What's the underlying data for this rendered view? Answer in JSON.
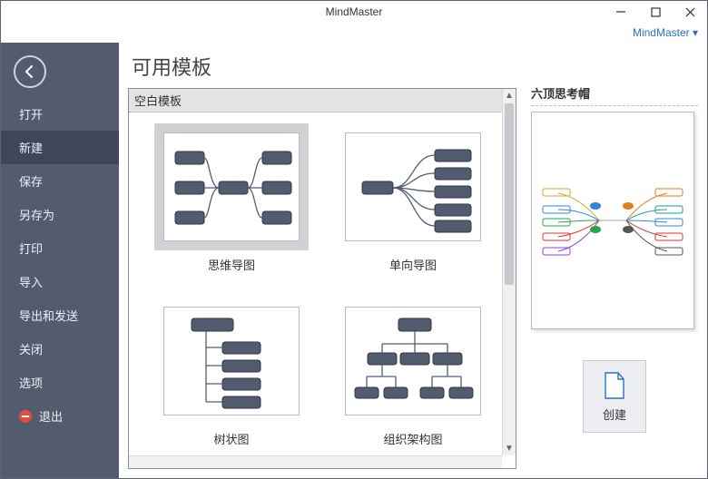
{
  "window": {
    "title": "MindMaster",
    "header_link": "MindMaster ▾"
  },
  "colors": {
    "sidebar_bg": "#535c6f",
    "sidebar_active": "#3e475a",
    "node_fill": "#535c6f",
    "node_stroke": "#2f3645",
    "accent_blue": "#2a6fc9",
    "exit_red": "#e74c3c",
    "selection_bg": "#cfd1d5",
    "panel_border": "#8c8f97"
  },
  "sidebar": {
    "items": [
      {
        "label": "打开",
        "active": false
      },
      {
        "label": "新建",
        "active": true
      },
      {
        "label": "保存",
        "active": false
      },
      {
        "label": "另存为",
        "active": false
      },
      {
        "label": "打印",
        "active": false
      },
      {
        "label": "导入",
        "active": false
      },
      {
        "label": "导出和发送",
        "active": false
      },
      {
        "label": "关闭",
        "active": false
      },
      {
        "label": "选项",
        "active": false
      },
      {
        "label": "退出",
        "active": false,
        "exit": true
      }
    ]
  },
  "main": {
    "page_title": "可用模板",
    "section_header": "空白模板",
    "templates": [
      {
        "label": "思维导图",
        "type": "mindmap",
        "selected": true
      },
      {
        "label": "单向导图",
        "type": "right-map",
        "selected": false
      },
      {
        "label": "树状图",
        "type": "tree-left",
        "selected": false
      },
      {
        "label": "组织架构图",
        "type": "org-chart",
        "selected": false
      }
    ]
  },
  "right": {
    "preview_title": "六顶思考帽",
    "create_label": "创建"
  }
}
